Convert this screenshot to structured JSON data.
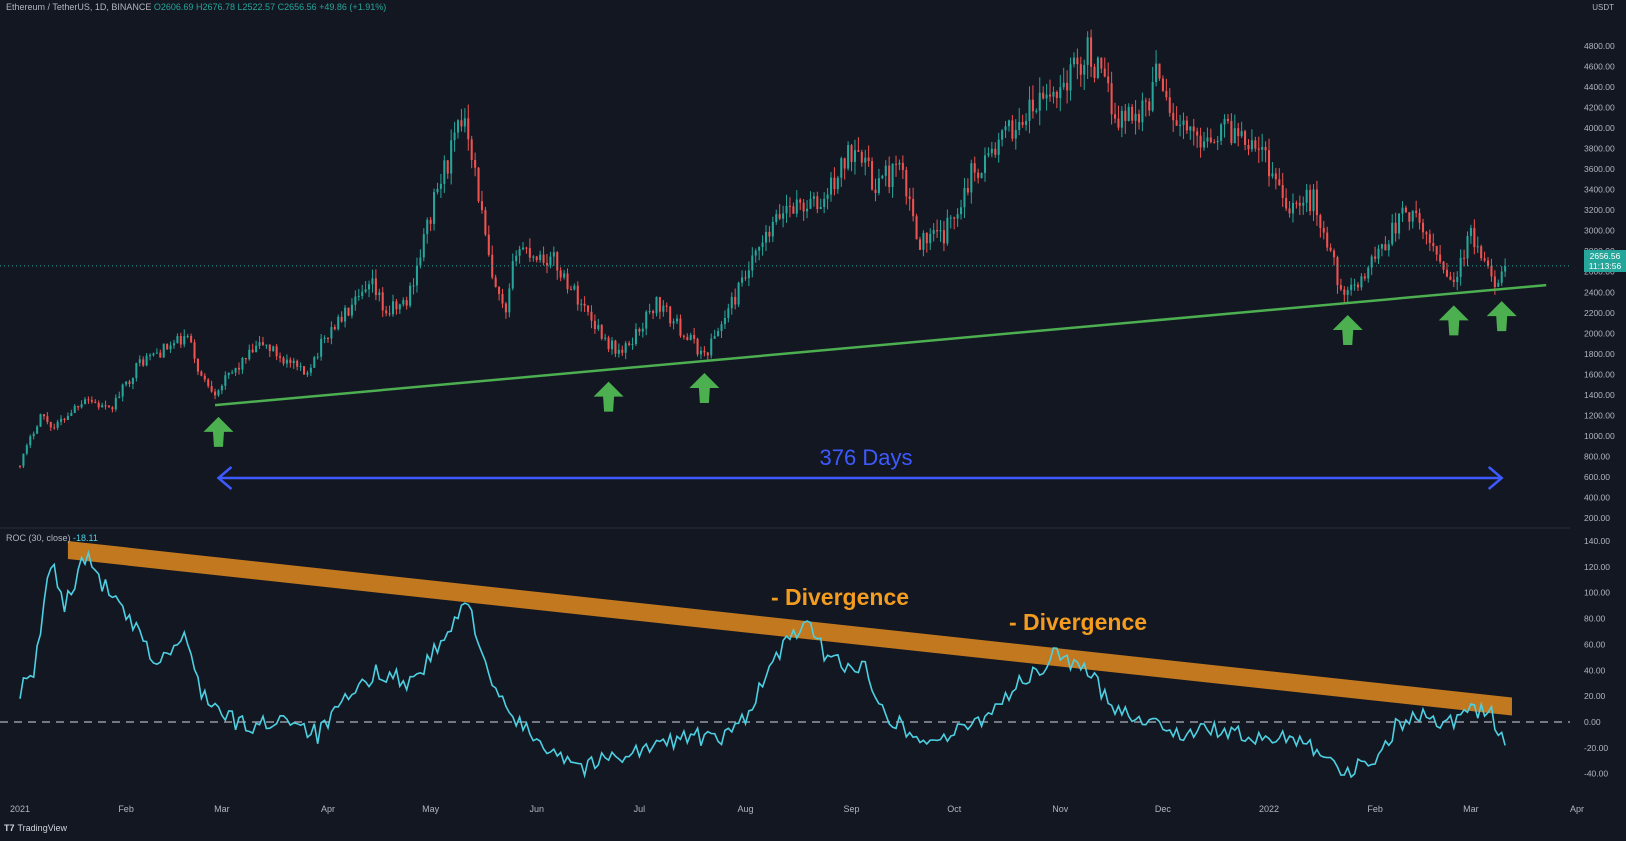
{
  "header": {
    "symbol": "Ethereum / TetherUS, 1D, BINANCE",
    "open": "O2606.69",
    "high": "H2676.78",
    "low": "L2522.57",
    "close": "C2656.56",
    "change": "+49.86 (+1.91%)"
  },
  "currency": "USDT",
  "last_price": {
    "value": "2656.56",
    "countdown": "11:13:56"
  },
  "roc_header": {
    "label": "ROC (30, close)",
    "value": "-18.11"
  },
  "annotations": {
    "span_label": "376 Days",
    "divergence_1": "- Divergence",
    "divergence_2": "- Divergence"
  },
  "branding": "TradingView",
  "colors": {
    "background": "#131722",
    "up": "#26a69a",
    "down": "#ef5350",
    "support_line": "#4caf50",
    "arrow": "#4caf50",
    "span_arrow": "#3d5afe",
    "roc_line": "#4dd0e1",
    "resistance_band": "#e08a1e",
    "divergence_text": "#f39c1f"
  },
  "chart_data": [
    {
      "type": "candlestick",
      "title": "Ethereum / TetherUS, 1D, BINANCE",
      "x_tick_labels": [
        "2021",
        "Feb",
        "Mar",
        "Apr",
        "May",
        "Jun",
        "Jul",
        "Aug",
        "Sep",
        "Oct",
        "Nov",
        "Dec",
        "2022",
        "Feb",
        "Mar",
        "Apr"
      ],
      "y_ticks": [
        200,
        400,
        600,
        800,
        1000,
        1200,
        1400,
        1600,
        1800,
        2000,
        2200,
        2400,
        2600,
        2800,
        3000,
        3200,
        3400,
        3600,
        3800,
        4000,
        4200,
        4400,
        4600,
        4800
      ],
      "y_tick_labels": [
        "200.00",
        "400.00",
        "600.00",
        "800.00",
        "1000.00",
        "1200.00",
        "1400.00",
        "1600.00",
        "1800.00",
        "2000.00",
        "2200.00",
        "2400.00",
        "2600.00",
        "2800.00",
        "3000.00",
        "3200.00",
        "3400.00",
        "3600.00",
        "3800.00",
        "4000.00",
        "4200.00",
        "4400.00",
        "4600.00",
        "4800.00"
      ],
      "ylim": [
        200,
        4950
      ],
      "close_path": [
        [
          "2021-01-01",
          730
        ],
        [
          "2021-01-07",
          1210
        ],
        [
          "2021-01-11",
          1080
        ],
        [
          "2021-01-20",
          1380
        ],
        [
          "2021-01-27",
          1240
        ],
        [
          "2021-02-05",
          1720
        ],
        [
          "2021-02-19",
          1960
        ],
        [
          "2021-02-23",
          1570
        ],
        [
          "2021-02-27",
          1440
        ],
        [
          "2021-03-10",
          1820
        ],
        [
          "2021-03-13",
          1900
        ],
        [
          "2021-03-25",
          1600
        ],
        [
          "2021-04-02",
          2050
        ],
        [
          "2021-04-14",
          2450
        ],
        [
          "2021-04-18",
          2200
        ],
        [
          "2021-04-24",
          2300
        ],
        [
          "2021-05-03",
          3400
        ],
        [
          "2021-05-11",
          4150
        ],
        [
          "2021-05-12",
          4000
        ],
        [
          "2021-05-19",
          2500
        ],
        [
          "2021-05-23",
          2150
        ],
        [
          "2021-05-26",
          2850
        ],
        [
          "2021-06-06",
          2700
        ],
        [
          "2021-06-22",
          1900
        ],
        [
          "2021-06-26",
          1800
        ],
        [
          "2021-07-06",
          2300
        ],
        [
          "2021-07-20",
          1780
        ],
        [
          "2021-08-05",
          2800
        ],
        [
          "2021-08-13",
          3250
        ],
        [
          "2021-08-23",
          3250
        ],
        [
          "2021-09-03",
          3900
        ],
        [
          "2021-09-07",
          3450
        ],
        [
          "2021-09-15",
          3600
        ],
        [
          "2021-09-21",
          2900
        ],
        [
          "2021-09-28",
          2950
        ],
        [
          "2021-10-06",
          3550
        ],
        [
          "2021-10-21",
          4100
        ],
        [
          "2021-11-01",
          4400
        ],
        [
          "2021-11-09",
          4750
        ],
        [
          "2021-11-18",
          4100
        ],
        [
          "2021-11-26",
          4200
        ],
        [
          "2021-11-30",
          4600
        ],
        [
          "2021-12-04",
          4100
        ],
        [
          "2021-12-10",
          3900
        ],
        [
          "2021-12-20",
          4000
        ],
        [
          "2021-12-28",
          3900
        ],
        [
          "2022-01-07",
          3250
        ],
        [
          "2022-01-14",
          3300
        ],
        [
          "2022-01-22",
          2450
        ],
        [
          "2022-01-24",
          2350
        ],
        [
          "2022-02-02",
          2800
        ],
        [
          "2022-02-10",
          3200
        ],
        [
          "2022-02-17",
          2900
        ],
        [
          "2022-02-24",
          2500
        ],
        [
          "2022-03-01",
          2950
        ],
        [
          "2022-03-07",
          2500
        ],
        [
          "2022-03-11",
          2656.56
        ]
      ],
      "last_price": 2656.56,
      "support_line": {
        "from": [
          "2021-02-27",
          1300
        ],
        "to": [
          "2022-03-23",
          2470
        ]
      },
      "support_arrows": [
        "2021-02-28",
        "2021-06-22",
        "2021-07-20",
        "2022-01-24",
        "2022-02-24",
        "2022-03-10"
      ],
      "span": {
        "from": "2021-02-28",
        "to": "2022-03-10",
        "label": "376 Days"
      }
    },
    {
      "type": "line",
      "title": "ROC (30, close)",
      "y_ticks": [
        -40,
        -20,
        0,
        20,
        40,
        60,
        80,
        100,
        120,
        140
      ],
      "y_tick_labels": [
        "-40.00",
        "-20.00",
        "0.00",
        "20.00",
        "40.00",
        "60.00",
        "80.00",
        "100.00",
        "120.00",
        "140.00"
      ],
      "ylim": [
        -50,
        145
      ],
      "zero_line": 0,
      "series": [
        {
          "values": [
            [
              "2021-01-01",
              25
            ],
            [
              "2021-01-05",
              35
            ],
            [
              "2021-01-10",
              125
            ],
            [
              "2021-01-14",
              90
            ],
            [
              "2021-01-20",
              128
            ],
            [
              "2021-01-27",
              100
            ],
            [
              "2021-02-04",
              70
            ],
            [
              "2021-02-10",
              45
            ],
            [
              "2021-02-18",
              65
            ],
            [
              "2021-02-23",
              25
            ],
            [
              "2021-03-01",
              5
            ],
            [
              "2021-03-10",
              -5
            ],
            [
              "2021-03-20",
              5
            ],
            [
              "2021-03-29",
              -10
            ],
            [
              "2021-04-06",
              15
            ],
            [
              "2021-04-16",
              40
            ],
            [
              "2021-04-25",
              30
            ],
            [
              "2021-05-04",
              60
            ],
            [
              "2021-05-12",
              93
            ],
            [
              "2021-05-20",
              20
            ],
            [
              "2021-05-28",
              -5
            ],
            [
              "2021-06-05",
              -20
            ],
            [
              "2021-06-15",
              -35
            ],
            [
              "2021-06-25",
              -25
            ],
            [
              "2021-07-05",
              -20
            ],
            [
              "2021-07-15",
              -10
            ],
            [
              "2021-07-25",
              -15
            ],
            [
              "2021-08-01",
              5
            ],
            [
              "2021-08-10",
              50
            ],
            [
              "2021-08-18",
              78
            ],
            [
              "2021-08-25",
              50
            ],
            [
              "2021-09-05",
              40
            ],
            [
              "2021-09-12",
              5
            ],
            [
              "2021-09-21",
              -15
            ],
            [
              "2021-10-01",
              -10
            ],
            [
              "2021-10-10",
              5
            ],
            [
              "2021-10-20",
              30
            ],
            [
              "2021-10-27",
              40
            ],
            [
              "2021-10-31",
              55
            ],
            [
              "2021-11-08",
              40
            ],
            [
              "2021-11-18",
              10
            ],
            [
              "2021-11-28",
              0
            ],
            [
              "2021-12-08",
              -10
            ],
            [
              "2021-12-18",
              -5
            ],
            [
              "2021-12-28",
              -15
            ],
            [
              "2022-01-08",
              -10
            ],
            [
              "2022-01-15",
              -20
            ],
            [
              "2022-01-24",
              -40
            ],
            [
              "2022-02-02",
              -25
            ],
            [
              "2022-02-08",
              0
            ],
            [
              "2022-02-15",
              5
            ],
            [
              "2022-02-23",
              0
            ],
            [
              "2022-03-01",
              12
            ],
            [
              "2022-03-07",
              5
            ],
            [
              "2022-03-11",
              -18.11
            ]
          ]
        }
      ],
      "resistance_band": {
        "from": [
          "2021-01-15",
          133
        ],
        "to": [
          "2022-03-13",
          12
        ]
      },
      "divergence_labels": [
        "- Divergence",
        "- Divergence"
      ]
    }
  ]
}
